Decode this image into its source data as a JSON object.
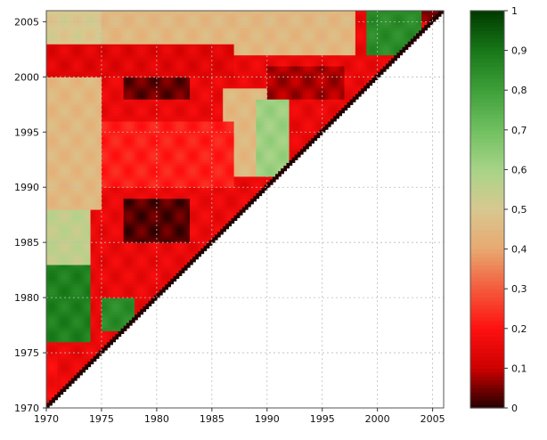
{
  "chart_data": {
    "type": "heatmap",
    "title": "",
    "xlabel": "",
    "ylabel": "",
    "shape": "upper-left triangle (row year >= column year)",
    "x_range": [
      1970,
      2006
    ],
    "y_range": [
      1970,
      2006
    ],
    "x_ticks": [
      1970,
      1975,
      1980,
      1985,
      1990,
      1995,
      2000,
      2005
    ],
    "y_ticks": [
      1970,
      1975,
      1980,
      1985,
      1990,
      1995,
      2000,
      2005
    ],
    "colorbar": {
      "range": [
        0,
        1
      ],
      "ticks": [
        0,
        0.1,
        0.2,
        0.3,
        0.4,
        0.5,
        0.6,
        0.7,
        0.8,
        0.9,
        1
      ],
      "tick_labels": [
        "0",
        "0,1",
        "0,2",
        "0,3",
        "0,4",
        "0,5",
        "0,6",
        "0,7",
        "0,8",
        "0,9",
        "1"
      ],
      "colormap": [
        {
          "v": 0.0,
          "color": "#220000"
        },
        {
          "v": 0.1,
          "color": "#cc0000"
        },
        {
          "v": 0.2,
          "color": "#ff1010"
        },
        {
          "v": 0.3,
          "color": "#f45a3c"
        },
        {
          "v": 0.4,
          "color": "#e8a870"
        },
        {
          "v": 0.5,
          "color": "#d8c890"
        },
        {
          "v": 0.6,
          "color": "#a8d488"
        },
        {
          "v": 0.7,
          "color": "#70c060"
        },
        {
          "v": 0.8,
          "color": "#3ea03a"
        },
        {
          "v": 0.9,
          "color": "#187818"
        },
        {
          "v": 1.0,
          "color": "#003a00"
        }
      ]
    },
    "background_value": 0.16,
    "regions": [
      {
        "x": [
          1970,
          1974
        ],
        "y": [
          1976,
          1983
        ],
        "value": 0.88
      },
      {
        "x": [
          1970,
          1974
        ],
        "y": [
          1983,
          1988
        ],
        "value": 0.55
      },
      {
        "x": [
          1970,
          1975
        ],
        "y": [
          1988,
          2002
        ],
        "value": 0.45
      },
      {
        "x": [
          1970,
          1975
        ],
        "y": [
          2002,
          2006
        ],
        "value": 0.5
      },
      {
        "x": [
          1975,
          1987
        ],
        "y": [
          2002,
          2006
        ],
        "value": 0.45
      },
      {
        "x": [
          1987,
          1998
        ],
        "y": [
          2002,
          2006
        ],
        "value": 0.45
      },
      {
        "x": [
          1986,
          1990
        ],
        "y": [
          1991,
          1999
        ],
        "value": 0.45
      },
      {
        "x": [
          1989,
          1992
        ],
        "y": [
          1991,
          1998
        ],
        "value": 0.62
      },
      {
        "x": [
          1999,
          2004
        ],
        "y": [
          2002,
          2006
        ],
        "value": 0.85
      },
      {
        "x": [
          1975,
          1978
        ],
        "y": [
          1977,
          1980
        ],
        "value": 0.85
      },
      {
        "x": [
          1970,
          1971
        ],
        "y": [
          1971,
          1975
        ],
        "value": 0.18
      },
      {
        "x": [
          1977,
          1983
        ],
        "y": [
          1985,
          1989
        ],
        "value": 0.03
      },
      {
        "x": [
          1977,
          1983
        ],
        "y": [
          1998,
          2002
        ],
        "value": 0.04
      },
      {
        "x": [
          1990,
          1997
        ],
        "y": [
          1998,
          2001
        ],
        "value": 0.08
      },
      {
        "x": [
          1975,
          1987
        ],
        "y": [
          1990,
          1996
        ],
        "value": 0.22
      },
      {
        "x": [
          1970,
          1987
        ],
        "y": [
          2000,
          2003
        ],
        "value": 0.14
      },
      {
        "x": [
          2004,
          2006
        ],
        "y": [
          2005,
          2006
        ],
        "value": 0.05
      }
    ],
    "diagonal_value": 0.0
  }
}
